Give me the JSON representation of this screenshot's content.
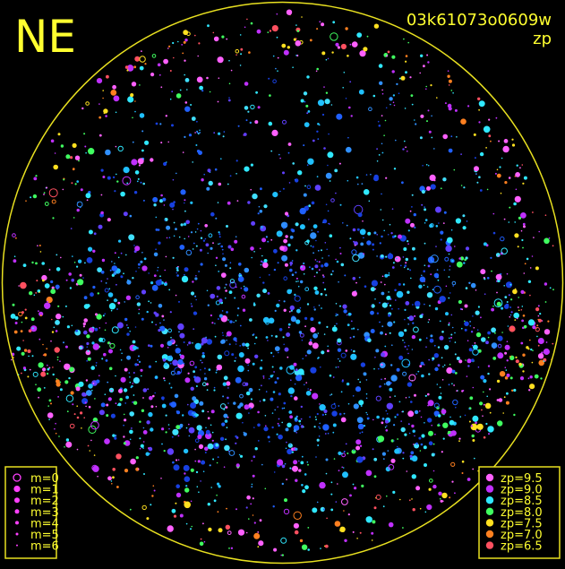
{
  "header": {
    "direction": "NE",
    "frame_id": "03k61073o0609w",
    "mode": "zp"
  },
  "legend_magnitude": [
    "m=0",
    "m=1",
    "m=2",
    "m=3",
    "m=4",
    "m=5",
    "m=6"
  ],
  "legend_zp": [
    {
      "label": "zp=9.5",
      "color": "#ff60ff"
    },
    {
      "label": "zp=9.0",
      "color": "#c030ff"
    },
    {
      "label": "zp=8.5",
      "color": "#30e8ff"
    },
    {
      "label": "zp=8.0",
      "color": "#40ff60"
    },
    {
      "label": "zp=7.5",
      "color": "#ffe020"
    },
    {
      "label": "zp=7.0",
      "color": "#ff8020"
    },
    {
      "label": "zp=6.5",
      "color": "#ff5060"
    }
  ]
}
